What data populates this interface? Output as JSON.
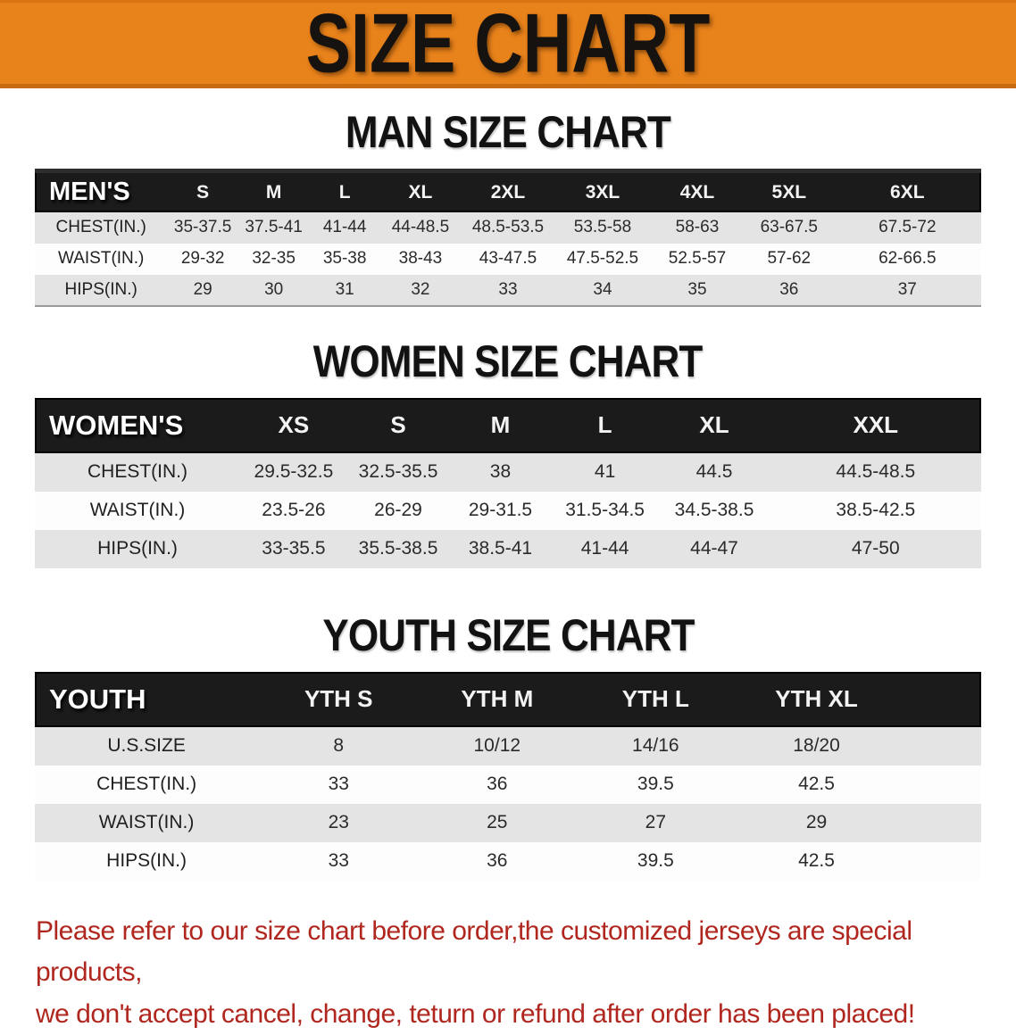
{
  "banner": {
    "title": "SIZE CHART"
  },
  "colors": {
    "banner_bg": "#E8821B",
    "table_header_bg": "#1B1B1B",
    "row_alt_bg": "#E4E4E4",
    "disclaimer_red": "#B0271F"
  },
  "men": {
    "heading": "MAN SIZE CHART",
    "label": "MEN'S",
    "sizes": [
      "S",
      "M",
      "L",
      "XL",
      "2XL",
      "3XL",
      "4XL",
      "5XL",
      "6XL"
    ],
    "rows": [
      {
        "label": "CHEST(IN.)",
        "values": [
          "35-37.5",
          "37.5-41",
          "41-44",
          "44-48.5",
          "48.5-53.5",
          "53.5-58",
          "58-63",
          "63-67.5",
          "67.5-72"
        ]
      },
      {
        "label": "WAIST(IN.)",
        "values": [
          "29-32",
          "32-35",
          "35-38",
          "38-43",
          "43-47.5",
          "47.5-52.5",
          "52.5-57",
          "57-62",
          "62-66.5"
        ]
      },
      {
        "label": "HIPS(IN.)",
        "values": [
          "29",
          "30",
          "31",
          "32",
          "33",
          "34",
          "35",
          "36",
          "37"
        ]
      }
    ]
  },
  "women": {
    "heading": "WOMEN SIZE CHART",
    "label": "WOMEN'S",
    "sizes": [
      "XS",
      "S",
      "M",
      "L",
      "XL",
      "XXL"
    ],
    "rows": [
      {
        "label": "CHEST(IN.)",
        "values": [
          "29.5-32.5",
          "32.5-35.5",
          "38",
          "41",
          "44.5",
          "44.5-48.5"
        ]
      },
      {
        "label": "WAIST(IN.)",
        "values": [
          "23.5-26",
          "26-29",
          "29-31.5",
          "31.5-34.5",
          "34.5-38.5",
          "38.5-42.5"
        ]
      },
      {
        "label": "HIPS(IN.)",
        "values": [
          "33-35.5",
          "35.5-38.5",
          "38.5-41",
          "41-44",
          "44-47",
          "47-50"
        ]
      }
    ]
  },
  "youth": {
    "heading": "YOUTH SIZE CHART",
    "label": "YOUTH",
    "sizes": [
      "YTH S",
      "YTH M",
      "YTH L",
      "YTH XL"
    ],
    "rows": [
      {
        "label": "U.S.SIZE",
        "values": [
          "8",
          "10/12",
          "14/16",
          "18/20"
        ]
      },
      {
        "label": "CHEST(IN.)",
        "values": [
          "33",
          "36",
          "39.5",
          "42.5"
        ]
      },
      {
        "label": "WAIST(IN.)",
        "values": [
          "23",
          "25",
          "27",
          "29"
        ]
      },
      {
        "label": "HIPS(IN.)",
        "values": [
          "33",
          "36",
          "39.5",
          "42.5"
        ]
      }
    ]
  },
  "disclaimer": {
    "line1": "Please refer to our size chart before order,the customized jerseys are special products,",
    "line2": "we don't accept cancel, change, teturn or refund after order has been placed!"
  }
}
